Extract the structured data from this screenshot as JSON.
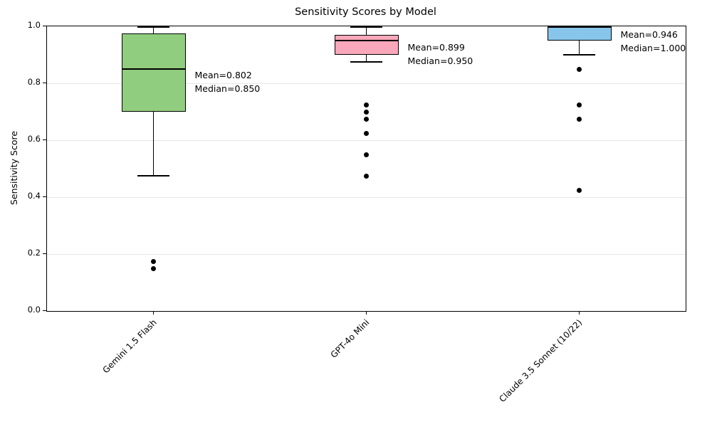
{
  "chart_data": {
    "type": "boxplot",
    "title": "Sensitivity Scores by Model",
    "ylabel": "Sensitivity Score",
    "ylim": [
      0.0,
      1.0
    ],
    "yticks": [
      0.0,
      0.2,
      0.4,
      0.6,
      0.8,
      1.0
    ],
    "grid": "horizontal",
    "legend": "none",
    "categories": [
      "Gemini 1.5 Flash",
      "GPT-4o Mini",
      "Claude 3.5 Sonnet (10/22)"
    ],
    "series": [
      {
        "name": "Gemini 1.5 Flash",
        "box_color": "#90cd7e",
        "whisker_low": 0.475,
        "q1": 0.7,
        "median": 0.85,
        "q3": 0.975,
        "whisker_high": 1.0,
        "mean": 0.802,
        "outliers": [
          0.175,
          0.15
        ],
        "annotation_lines": [
          "Mean=0.802",
          "Median=0.850"
        ]
      },
      {
        "name": "GPT-4o Mini",
        "box_color": "#f8a8ba",
        "whisker_low": 0.875,
        "q1": 0.9,
        "median": 0.95,
        "q3": 0.97,
        "whisker_high": 1.0,
        "mean": 0.899,
        "outliers": [
          0.725,
          0.7,
          0.675,
          0.625,
          0.55,
          0.475
        ],
        "annotation_lines": [
          "Mean=0.899",
          "Median=0.950"
        ]
      },
      {
        "name": "Claude 3.5 Sonnet (10/22)",
        "box_color": "#87c6ea",
        "whisker_low": 0.9,
        "q1": 0.95,
        "median": 1.0,
        "q3": 1.0,
        "whisker_high": 1.0,
        "mean": 0.946,
        "outliers": [
          0.85,
          0.725,
          0.675,
          0.425
        ],
        "annotation_lines": [
          "Mean=0.946",
          "Median=1.000"
        ]
      }
    ]
  }
}
